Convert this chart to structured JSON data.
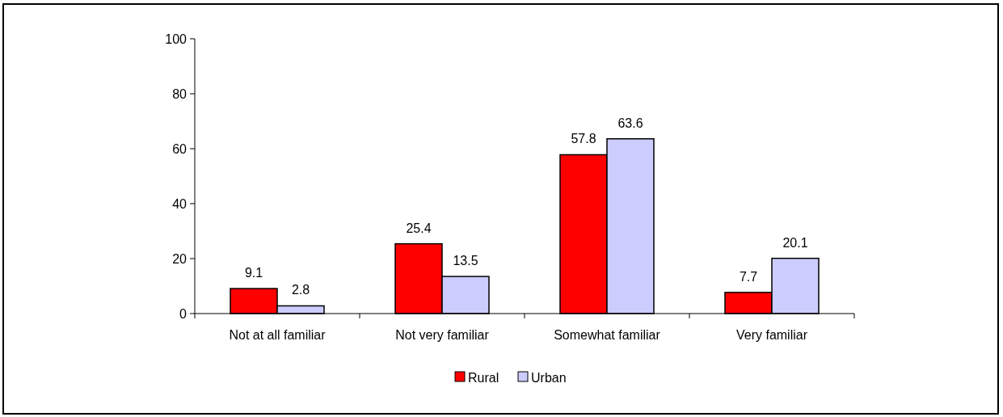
{
  "chart_data": {
    "type": "bar",
    "categories": [
      "Not at all familiar",
      "Not very familiar",
      "Somewhat familiar",
      "Very familiar"
    ],
    "series": [
      {
        "name": "Rural",
        "color": "#ff0000",
        "values": [
          9.1,
          25.4,
          57.8,
          7.7
        ]
      },
      {
        "name": "Urban",
        "color": "#ccccff",
        "values": [
          2.8,
          13.5,
          63.6,
          20.1
        ]
      }
    ],
    "ylim": [
      0,
      100
    ],
    "yticks": [
      0,
      20,
      40,
      60,
      80,
      100
    ],
    "data_labels": true,
    "legend": "bottom",
    "grid": false
  }
}
